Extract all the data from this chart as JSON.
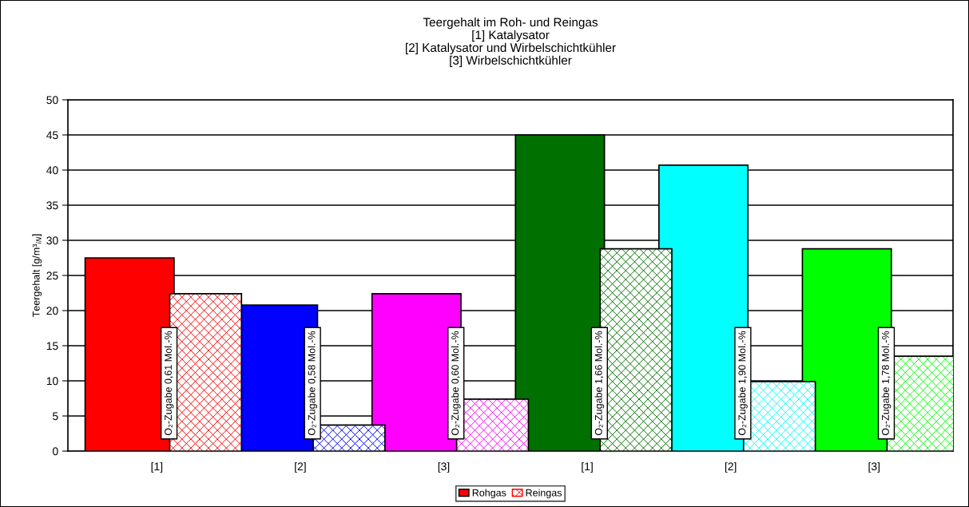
{
  "chart_data": {
    "type": "bar",
    "title": "Teergehalt im Roh- und Reingas\n[1] Katalysator\n[2] Katalysator und Wirbelschichtkühler\n[3] Wirbelschichtkühler",
    "ylabel": "Teergehalt [g/m³$_{iN}$]",
    "categories": [
      "[1]",
      "[2]",
      "[3]",
      "[1]",
      "[2]",
      "[3]"
    ],
    "series": [
      {
        "name": "Rohgas",
        "color": "#ff0000",
        "colors": [
          "#ff0000",
          "#0000ff",
          "#ff00ff",
          "#007000",
          "#00ffff",
          "#00ff00"
        ],
        "values": [
          27.5,
          20.8,
          22.4,
          45.0,
          40.7,
          28.8
        ]
      },
      {
        "name": "Reingas",
        "color": "#ff0000",
        "colors": [
          "#ff0000",
          "#0000ff",
          "#ff00ff",
          "#007000",
          "#00ffff",
          "#00ff00"
        ],
        "values": [
          22.4,
          3.7,
          7.4,
          28.8,
          9.9,
          13.5
        ]
      }
    ],
    "annotations": [
      "O₂-Zugabe 0,61 Mol.-%",
      "O₂-Zugabe 0,58 Mol.-%",
      "O₂-Zugabe 0,60 Mol.-%",
      "O₂-Zugabe 1,66 Mol.-%",
      "O₂-Zugabe 1,90 Mol.-%",
      "O₂-Zugabe 1,78 Mol.-%"
    ],
    "ylim": [
      0,
      50
    ],
    "yticks": [
      0,
      5,
      10,
      15,
      20,
      25,
      30,
      35,
      40,
      45,
      50
    ],
    "grid": "y",
    "legend": "bottom"
  }
}
